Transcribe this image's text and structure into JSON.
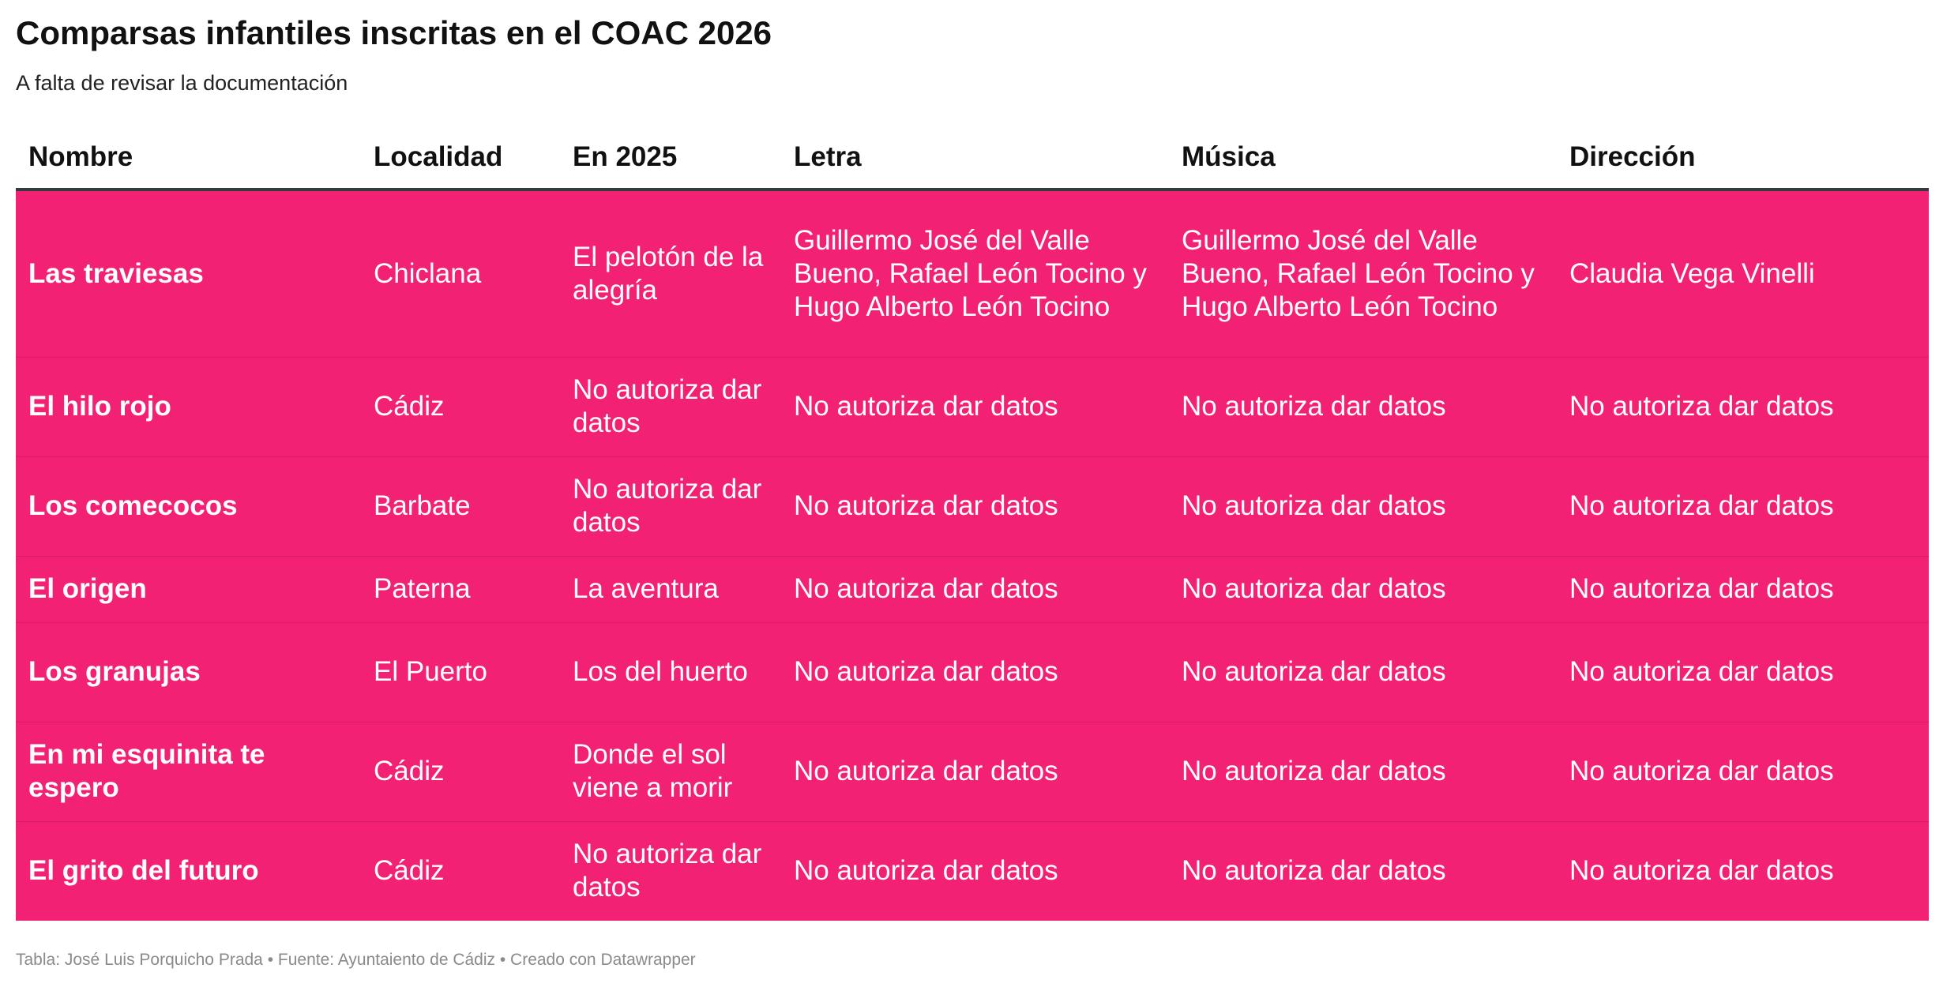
{
  "title": "Comparsas infantiles inscritas en el COAC 2026",
  "subtitle": "A falta de revisar la documentación",
  "footer": "Tabla: José Luis Porquicho Prada • Fuente: Ayuntaiento de Cádiz • Creado con Datawrapper",
  "colors": {
    "row_background": "#f22174",
    "row_text": "#ffffff",
    "header_rule": "#333c3c"
  },
  "chart_data": {
    "type": "table",
    "title": "Comparsas infantiles inscritas en el COAC 2026",
    "subtitle": "A falta de revisar la documentación",
    "columns": [
      "Nombre",
      "Localidad",
      "En 2025",
      "Letra",
      "Música",
      "Dirección"
    ],
    "rows": [
      [
        "Las traviesas",
        "Chiclana",
        "El pelotón de la alegría",
        "Guillermo José del Valle Bueno, Rafael León Tocino y Hugo Alberto León Tocino",
        "Guillermo José del Valle Bueno, Rafael León Tocino y Hugo Alberto León Tocino",
        "Claudia Vega Vinelli"
      ],
      [
        "El hilo rojo",
        "Cádiz",
        "No autoriza dar datos",
        "No autoriza dar datos",
        "No autoriza dar datos",
        "No autoriza dar datos"
      ],
      [
        "Los comecocos",
        "Barbate",
        "No autoriza dar datos",
        "No autoriza dar datos",
        "No autoriza dar datos",
        "No autoriza dar datos"
      ],
      [
        "El origen",
        "Paterna",
        "La aventura",
        "No autoriza dar datos",
        "No autoriza dar datos",
        "No autoriza dar datos"
      ],
      [
        "Los granujas",
        "El Puerto",
        "Los del huerto",
        "No autoriza dar datos",
        "No autoriza dar datos",
        "No autoriza dar datos"
      ],
      [
        "En mi esquinita te espero",
        "Cádiz",
        "Donde el sol viene a morir",
        "No autoriza dar datos",
        "No autoriza dar datos",
        "No autoriza dar datos"
      ],
      [
        "El grito del futuro",
        "Cádiz",
        "No autoriza dar datos",
        "No autoriza dar datos",
        "No autoriza dar datos",
        "No autoriza dar datos"
      ]
    ]
  }
}
